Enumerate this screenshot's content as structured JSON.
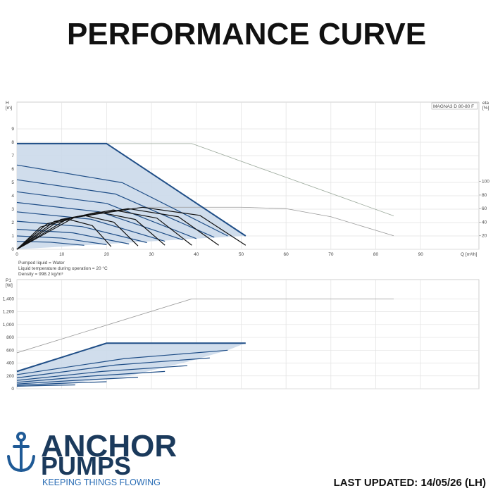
{
  "header": {
    "title": "PERFORMANCE CURVE"
  },
  "chart_data": [
    {
      "type": "line",
      "model": "MAGNA3 D 80-80 F",
      "ylabel": "H",
      "ylabel_unit": "[m]",
      "y2label": "eta",
      "y2label_unit": "[%]",
      "xlabel": "Q [m³/h]",
      "xlim": [
        0,
        103
      ],
      "xticks": [
        0,
        10,
        20,
        30,
        40,
        50,
        60,
        70,
        80,
        90
      ],
      "ylim": [
        0,
        11
      ],
      "yticks": [
        0,
        1,
        2,
        3,
        4,
        5,
        6,
        7,
        8,
        9
      ],
      "y2lim": [
        0,
        217
      ],
      "y2ticks": [
        20,
        40,
        60,
        80,
        100
      ],
      "grid": true,
      "notes": [
        "Pumped liquid = Water",
        "Liquid temperature during operation = 20 °C",
        "Density = 998.2 kg/m³"
      ],
      "series": [
        {
          "fill": "#cbd9ea",
          "x": [
            0,
            20,
            51,
            40,
            25,
            10,
            0
          ],
          "values": [
            7.9,
            7.9,
            1.0,
            0.8,
            0.5,
            0.2,
            0
          ]
        },
        {
          "color": "#9aa89a",
          "width": 0.8,
          "x": [
            0,
            39,
            84
          ],
          "values": [
            7.9,
            7.9,
            2.5
          ]
        },
        {
          "color": "#999999",
          "width": 0.8,
          "axis": "y2",
          "x": [
            28,
            50,
            60,
            70,
            84
          ],
          "values": [
            62,
            62,
            60,
            48,
            20
          ]
        },
        {
          "color": "#1f4e87",
          "width": 2,
          "x": [
            0,
            20,
            51
          ],
          "values": [
            7.9,
            7.9,
            1.0
          ]
        },
        {
          "color": "#1f4e87",
          "width": 1.2,
          "x": [
            0,
            23.5,
            47
          ],
          "values": [
            6.3,
            4.98,
            1.0
          ]
        },
        {
          "color": "#1f4e87",
          "width": 1.2,
          "x": [
            0,
            22,
            44
          ],
          "values": [
            5.2,
            4.13,
            0.9
          ]
        },
        {
          "color": "#1f4e87",
          "width": 1.2,
          "x": [
            0,
            20,
            40
          ],
          "values": [
            4.3,
            3.43,
            0.8
          ]
        },
        {
          "color": "#1f4e87",
          "width": 1.2,
          "x": [
            0,
            18.5,
            37
          ],
          "values": [
            3.5,
            2.8,
            0.7
          ]
        },
        {
          "color": "#1f4e87",
          "width": 1.2,
          "x": [
            0,
            16.5,
            33
          ],
          "values": [
            2.8,
            2.25,
            0.6
          ]
        },
        {
          "color": "#1f4e87",
          "width": 1.2,
          "x": [
            0,
            14.5,
            29
          ],
          "values": [
            2.1,
            1.7,
            0.5
          ]
        },
        {
          "color": "#1f4e87",
          "width": 1.2,
          "x": [
            0,
            12.5,
            25
          ],
          "values": [
            1.5,
            1.23,
            0.4
          ]
        },
        {
          "color": "#1f4e87",
          "width": 1.2,
          "x": [
            0,
            10,
            20
          ],
          "values": [
            1.0,
            0.84,
            0.35
          ]
        },
        {
          "color": "#1f4e87",
          "width": 1.2,
          "x": [
            0,
            7.5,
            15
          ],
          "values": [
            0.6,
            0.53,
            0.3
          ]
        },
        {
          "color": "#111111",
          "width": 1.2,
          "axis": "y2",
          "x": [
            0,
            12.8,
            28,
            40.8,
            51
          ],
          "values": [
            0,
            47,
            62,
            50,
            6
          ]
        },
        {
          "color": "#111111",
          "width": 1.2,
          "axis": "y2",
          "x": [
            0,
            11.3,
            24.8,
            36,
            45
          ],
          "values": [
            0,
            45,
            60,
            48,
            6
          ]
        },
        {
          "color": "#111111",
          "width": 1.2,
          "axis": "y2",
          "x": [
            0,
            9.8,
            21.5,
            31.2,
            39
          ],
          "values": [
            0,
            44,
            58,
            46,
            6
          ]
        },
        {
          "color": "#111111",
          "width": 1.2,
          "axis": "y2",
          "x": [
            0,
            8.3,
            18.2,
            26.4,
            33
          ],
          "values": [
            0,
            41,
            55,
            44,
            6
          ]
        },
        {
          "color": "#111111",
          "width": 1.2,
          "axis": "y2",
          "x": [
            0,
            6.8,
            14.9,
            21.6,
            27
          ],
          "values": [
            0,
            38,
            50,
            40,
            5
          ]
        },
        {
          "color": "#111111",
          "width": 1.2,
          "axis": "y2",
          "x": [
            0,
            5.3,
            11.6,
            16.8,
            21
          ],
          "values": [
            0,
            33,
            44,
            35,
            4
          ]
        }
      ]
    },
    {
      "type": "line",
      "ylabel": "P1",
      "ylabel_unit": "[W]",
      "xlim": [
        0,
        103
      ],
      "ylim": [
        0,
        1700
      ],
      "yticks": [
        0,
        200,
        400,
        600,
        800,
        {
          "value": 1000,
          "label": "1,000"
        },
        {
          "value": 1200,
          "label": "1,200"
        },
        {
          "value": 1400,
          "label": "1,400"
        }
      ],
      "grid": true,
      "series": [
        {
          "fill": "#cbd9ea",
          "x": [
            0,
            20,
            51,
            47,
            38,
            25,
            10,
            0
          ],
          "values": [
            270,
            710,
            710,
            600,
            420,
            200,
            70,
            30
          ]
        },
        {
          "color": "#999999",
          "width": 0.8,
          "x": [
            0,
            39,
            84
          ],
          "values": [
            560,
            1400,
            1400
          ]
        },
        {
          "color": "#1f4e87",
          "width": 2,
          "x": [
            0,
            20,
            51
          ],
          "values": [
            270,
            710,
            710
          ]
        },
        {
          "color": "#1f4e87",
          "width": 1.2,
          "x": [
            0,
            24,
            47
          ],
          "values": [
            220,
            470,
            600
          ]
        },
        {
          "color": "#1f4e87",
          "width": 1.2,
          "x": [
            0,
            22,
            43
          ],
          "values": [
            170,
            370,
            480
          ]
        },
        {
          "color": "#1f4e87",
          "width": 1.2,
          "x": [
            0,
            19,
            38
          ],
          "values": [
            130,
            270,
            360
          ]
        },
        {
          "color": "#1f4e87",
          "width": 1.2,
          "x": [
            0,
            16,
            33
          ],
          "values": [
            100,
            195,
            270
          ]
        },
        {
          "color": "#1f4e87",
          "width": 1.2,
          "x": [
            0,
            13,
            27
          ],
          "values": [
            75,
            130,
            180
          ]
        },
        {
          "color": "#1f4e87",
          "width": 1.2,
          "x": [
            0,
            10,
            20
          ],
          "values": [
            55,
            85,
            110
          ]
        },
        {
          "color": "#1f4e87",
          "width": 1.2,
          "x": [
            0,
            7,
            13
          ],
          "values": [
            40,
            52,
            60
          ]
        }
      ]
    }
  ],
  "footer": {
    "brand_line1": "ANCHOR",
    "brand_line2": "PUMPS",
    "tagline": "KEEPING THINGS FLOWING",
    "updated": "LAST UPDATED: 14/05/26 (LH)"
  }
}
